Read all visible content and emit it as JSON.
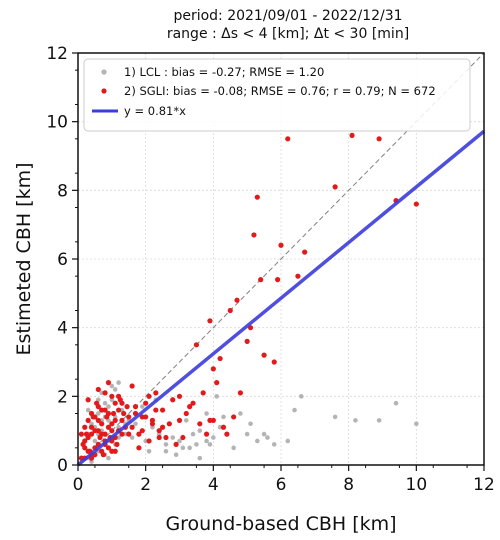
{
  "chart_data": {
    "type": "scatter",
    "title": [
      "period: 2021/09/01 - 2022/12/31",
      "range : Δs < 4 [km]; Δt < 30 [min]"
    ],
    "xlabel": "Ground-based CBH [km]",
    "ylabel": "Estimeted CBH [km]",
    "xlim": [
      0,
      12
    ],
    "ylim": [
      0,
      12
    ],
    "xticks": [
      0,
      2,
      4,
      6,
      8,
      10,
      12
    ],
    "yticks": [
      0,
      2,
      4,
      6,
      8,
      10,
      12
    ],
    "grid": true,
    "legend_position": "top-left",
    "colors": {
      "lcl": "#b4b4b4",
      "sgli": "#e31a1c",
      "fit": "#3c3cdc",
      "identity": "#808080"
    },
    "series": [
      {
        "name": "1) LCL : bias = -0.27; RMSE = 1.20",
        "kind": "points",
        "x": [
          0.2,
          0.3,
          0.4,
          0.5,
          0.6,
          0.7,
          0.8,
          0.9,
          1.0,
          1.1,
          1.2,
          1.3,
          1.4,
          0.5,
          0.6,
          0.8,
          1.0,
          1.2,
          0.3,
          0.7,
          0.9,
          1.1,
          0.4,
          0.6,
          1.3,
          0.8,
          1.0,
          1.2,
          0.5,
          0.9,
          0.7,
          1.1,
          0.6,
          1.4,
          0.8,
          1.5,
          1.6,
          1.7,
          1.8,
          2.0,
          2.2,
          2.4,
          2.6,
          2.8,
          3.0,
          3.2,
          3.4,
          3.5,
          3.6,
          3.8,
          4.0,
          4.2,
          4.4,
          4.6,
          5.0,
          5.3,
          5.6,
          5.8,
          6.2,
          6.6,
          7.6,
          8.2,
          9.4,
          1.2,
          0.9,
          0.3,
          0.4,
          2.6,
          3.8,
          4.1,
          5.5,
          6.4,
          8.9,
          10.0,
          3.3,
          3.6,
          4.3,
          1.9,
          2.3,
          2.1,
          2.9,
          3.1,
          3.9,
          4.8,
          5.1
        ],
        "y": [
          0.5,
          0.9,
          1.2,
          0.7,
          1.5,
          1.0,
          1.8,
          1.3,
          1.9,
          1.4,
          2.0,
          1.6,
          1.2,
          1.1,
          0.4,
          0.6,
          1.0,
          0.8,
          1.6,
          2.1,
          1.7,
          2.2,
          0.3,
          0.9,
          1.8,
          1.4,
          2.3,
          1.1,
          0.5,
          0.7,
          1.3,
          0.6,
          1.9,
          0.9,
          0.3,
          1.3,
          0.8,
          1.2,
          0.9,
          0.7,
          1.1,
          0.9,
          0.6,
          0.8,
          0.7,
          1.3,
          0.9,
          0.6,
          1.0,
          0.7,
          0.8,
          1.1,
          0.9,
          0.5,
          0.9,
          0.7,
          0.8,
          0.6,
          0.7,
          2.0,
          1.4,
          1.3,
          1.8,
          2.4,
          0.2,
          0.2,
          0.1,
          0.4,
          1.5,
          2.0,
          0.9,
          1.6,
          1.3,
          1.2,
          0.5,
          0.2,
          1.4,
          1.7,
          1.9,
          0.4,
          0.3,
          0.5,
          0.6,
          1.5,
          1.2
        ]
      },
      {
        "name": "2) SGLI: bias = -0.08; RMSE = 0.76; r = 0.79; N = 672",
        "kind": "points",
        "x": [
          0.1,
          0.2,
          0.3,
          0.4,
          0.5,
          0.6,
          0.7,
          0.8,
          0.9,
          1.0,
          1.1,
          1.2,
          1.3,
          1.4,
          1.5,
          0.2,
          0.3,
          0.4,
          0.5,
          0.6,
          0.7,
          0.8,
          0.9,
          1.0,
          1.1,
          1.2,
          1.3,
          0.1,
          0.2,
          0.3,
          0.4,
          0.5,
          0.6,
          0.7,
          0.8,
          0.9,
          1.0,
          1.1,
          0.15,
          0.25,
          0.35,
          0.45,
          0.55,
          0.65,
          0.75,
          0.85,
          0.95,
          1.05,
          1.15,
          1.25,
          1.35,
          1.45,
          0.3,
          0.5,
          0.7,
          0.9,
          1.1,
          1.3,
          0.4,
          0.6,
          0.8,
          1.0,
          1.2,
          0.2,
          0.4,
          0.6,
          0.8,
          1.0,
          1.6,
          1.7,
          1.8,
          1.9,
          2.0,
          2.1,
          2.2,
          2.3,
          2.4,
          2.5,
          2.6,
          2.7,
          2.8,
          2.9,
          3.0,
          1.6,
          1.8,
          2.0,
          2.2,
          2.4,
          1.5,
          1.7,
          1.9,
          2.1,
          2.3,
          2.5,
          3.2,
          3.4,
          3.6,
          3.8,
          4.0,
          4.3,
          4.6,
          3.1,
          3.3,
          3.7,
          3.9,
          4.1,
          4.4,
          3.5,
          3.9,
          4.0,
          4.2,
          4.7,
          5.0,
          5.2,
          5.3,
          5.5,
          5.8,
          5.9,
          6.0,
          6.2,
          6.5,
          6.7,
          7.6,
          8.1,
          8.9,
          9.4,
          10.0,
          4.8,
          5.4,
          5.1,
          4.5,
          3.0
        ],
        "y": [
          0.2,
          0.5,
          0.8,
          0.3,
          1.0,
          0.6,
          1.2,
          0.9,
          1.5,
          0.7,
          1.3,
          1.0,
          1.8,
          1.1,
          1.4,
          1.1,
          0.4,
          1.5,
          0.5,
          1.7,
          0.4,
          0.6,
          1.1,
          2.0,
          0.8,
          1.6,
          0.9,
          0.9,
          0.2,
          1.3,
          0.9,
          0.3,
          1.0,
          1.6,
          2.1,
          0.5,
          1.2,
          1.8,
          0.6,
          0.9,
          0.4,
          1.4,
          1.8,
          0.8,
          0.3,
          1.4,
          0.8,
          1.5,
          0.6,
          1.9,
          1.5,
          1.7,
          1.9,
          1.4,
          0.9,
          2.4,
          0.4,
          1.3,
          0.2,
          2.2,
          0.7,
          1.0,
          2.0,
          0.7,
          1.1,
          1.3,
          1.6,
          0.4,
          1.1,
          1.7,
          0.9,
          1.4,
          1.8,
          0.7,
          1.3,
          2.1,
          1.0,
          1.6,
          0.8,
          1.2,
          1.9,
          0.6,
          1.3,
          2.3,
          0.5,
          1.4,
          1.2,
          0.8,
          0.9,
          1.5,
          1.0,
          2.0,
          1.6,
          1.1,
          1.5,
          1.8,
          1.2,
          0.9,
          1.3,
          1.1,
          1.4,
          0.8,
          1.7,
          2.1,
          1.3,
          2.4,
          0.9,
          3.5,
          4.2,
          2.8,
          3.1,
          4.8,
          3.6,
          6.7,
          7.8,
          3.2,
          3.0,
          5.4,
          6.4,
          9.5,
          5.5,
          6.2,
          8.1,
          9.6,
          9.5,
          7.7,
          7.6,
          2.1,
          5.4,
          4.0,
          4.5,
          2.0
        ]
      },
      {
        "name": "y = 0.81*x",
        "kind": "line",
        "slope": 0.81,
        "x": [
          0,
          12
        ],
        "y": [
          0,
          9.72
        ]
      },
      {
        "kind": "identity",
        "slope": 1.0,
        "x": [
          0,
          12
        ],
        "y": [
          0,
          12
        ]
      }
    ]
  }
}
